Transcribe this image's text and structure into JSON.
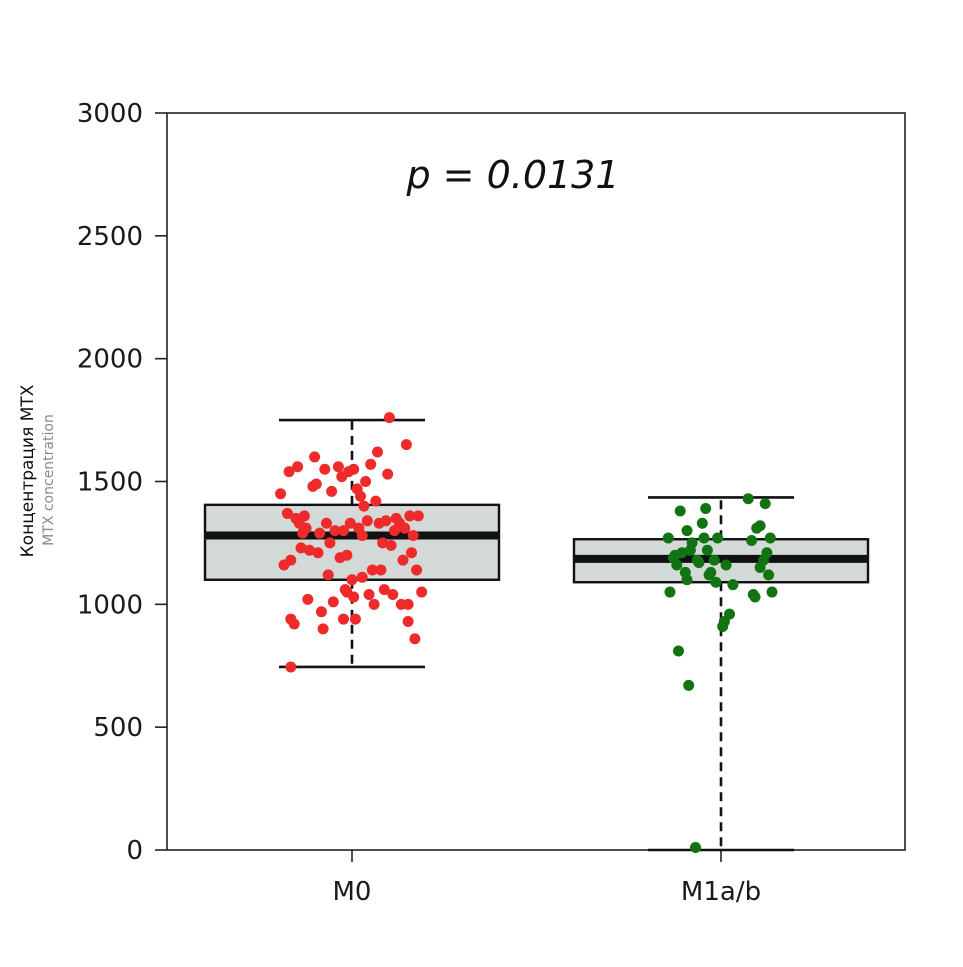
{
  "chart_data": {
    "type": "box",
    "annotation": "p = 0.0131",
    "ylabel": "Концентрация МТХ",
    "ylabel_secondary": "MTX concentration",
    "xlabel": "",
    "ylim": [
      0,
      3000
    ],
    "yticks": [
      0,
      500,
      1000,
      1500,
      2000,
      2500,
      3000
    ],
    "grid": false,
    "colors": {
      "box_fill": "#d3d9d7",
      "box_stroke": "#111111",
      "M0": "#ee2a2a",
      "M1a/b": "#127312"
    },
    "categories": [
      "M0",
      "M1a/b"
    ],
    "boxes": [
      {
        "category": "M0",
        "whisker_low": 745,
        "q1": 1100,
        "median": 1280,
        "q3": 1405,
        "whisker_high": 1750
      },
      {
        "category": "M1a/b",
        "whisker_low": 0,
        "q1": 1090,
        "median": 1185,
        "q3": 1265,
        "whisker_high": 1435
      }
    ],
    "points": {
      "M0": [
        {
          "x": -0.42,
          "y": 1450
        },
        {
          "x": -0.4,
          "y": 1160
        },
        {
          "x": -0.38,
          "y": 1370
        },
        {
          "x": -0.37,
          "y": 1540
        },
        {
          "x": -0.36,
          "y": 1180
        },
        {
          "x": -0.36,
          "y": 940
        },
        {
          "x": -0.34,
          "y": 920
        },
        {
          "x": -0.33,
          "y": 1350
        },
        {
          "x": -0.32,
          "y": 1560
        },
        {
          "x": -0.31,
          "y": 1330
        },
        {
          "x": -0.3,
          "y": 1230
        },
        {
          "x": -0.29,
          "y": 1290
        },
        {
          "x": -0.28,
          "y": 1360
        },
        {
          "x": -0.27,
          "y": 1310
        },
        {
          "x": -0.26,
          "y": 1020
        },
        {
          "x": -0.25,
          "y": 1220
        },
        {
          "x": -0.23,
          "y": 1480
        },
        {
          "x": -0.22,
          "y": 1600
        },
        {
          "x": -0.21,
          "y": 1490
        },
        {
          "x": -0.2,
          "y": 1210
        },
        {
          "x": -0.19,
          "y": 1290
        },
        {
          "x": -0.18,
          "y": 970
        },
        {
          "x": -0.17,
          "y": 900
        },
        {
          "x": -0.16,
          "y": 1550
        },
        {
          "x": -0.15,
          "y": 1330
        },
        {
          "x": -0.14,
          "y": 1120
        },
        {
          "x": -0.13,
          "y": 1250
        },
        {
          "x": -0.12,
          "y": 1460
        },
        {
          "x": -0.11,
          "y": 1010
        },
        {
          "x": -0.1,
          "y": 1300
        },
        {
          "x": -0.08,
          "y": 1560
        },
        {
          "x": -0.07,
          "y": 1190
        },
        {
          "x": -0.06,
          "y": 1520
        },
        {
          "x": -0.05,
          "y": 1300
        },
        {
          "x": -0.05,
          "y": 940
        },
        {
          "x": -0.04,
          "y": 1060
        },
        {
          "x": -0.03,
          "y": 1200
        },
        {
          "x": -0.03,
          "y": 1050
        },
        {
          "x": -0.02,
          "y": 1540
        },
        {
          "x": -0.01,
          "y": 1330
        },
        {
          "x": 0.0,
          "y": 1100
        },
        {
          "x": 0.01,
          "y": 1550
        },
        {
          "x": 0.01,
          "y": 1030
        },
        {
          "x": 0.02,
          "y": 940
        },
        {
          "x": 0.03,
          "y": 1470
        },
        {
          "x": 0.04,
          "y": 1310
        },
        {
          "x": 0.05,
          "y": 1440
        },
        {
          "x": 0.06,
          "y": 1280
        },
        {
          "x": 0.06,
          "y": 1110
        },
        {
          "x": 0.07,
          "y": 1400
        },
        {
          "x": 0.08,
          "y": 1500
        },
        {
          "x": 0.09,
          "y": 1340
        },
        {
          "x": 0.1,
          "y": 1040
        },
        {
          "x": 0.11,
          "y": 1570
        },
        {
          "x": 0.12,
          "y": 1140
        },
        {
          "x": 0.13,
          "y": 1000
        },
        {
          "x": 0.14,
          "y": 1420
        },
        {
          "x": 0.15,
          "y": 1620
        },
        {
          "x": 0.16,
          "y": 1330
        },
        {
          "x": 0.17,
          "y": 1140
        },
        {
          "x": 0.18,
          "y": 1250
        },
        {
          "x": 0.19,
          "y": 1060
        },
        {
          "x": 0.2,
          "y": 1340
        },
        {
          "x": 0.21,
          "y": 1530
        },
        {
          "x": 0.22,
          "y": 1760
        },
        {
          "x": 0.23,
          "y": 1240
        },
        {
          "x": 0.24,
          "y": 1040
        },
        {
          "x": 0.25,
          "y": 1300
        },
        {
          "x": 0.26,
          "y": 1350
        },
        {
          "x": 0.28,
          "y": 1330
        },
        {
          "x": 0.29,
          "y": 1000
        },
        {
          "x": 0.3,
          "y": 1180
        },
        {
          "x": 0.31,
          "y": 1310
        },
        {
          "x": 0.32,
          "y": 1650
        },
        {
          "x": 0.33,
          "y": 1000
        },
        {
          "x": 0.33,
          "y": 930
        },
        {
          "x": 0.34,
          "y": 1360
        },
        {
          "x": 0.35,
          "y": 1210
        },
        {
          "x": 0.36,
          "y": 1280
        },
        {
          "x": 0.37,
          "y": 860
        },
        {
          "x": 0.38,
          "y": 1140
        },
        {
          "x": 0.39,
          "y": 1360
        },
        {
          "x": 0.41,
          "y": 1050
        },
        {
          "x": -0.36,
          "y": 745
        }
      ],
      "M1a/b": [
        {
          "x": -0.31,
          "y": 1270
        },
        {
          "x": -0.3,
          "y": 1050
        },
        {
          "x": -0.28,
          "y": 1190
        },
        {
          "x": -0.27,
          "y": 1200
        },
        {
          "x": -0.26,
          "y": 1160
        },
        {
          "x": -0.25,
          "y": 810
        },
        {
          "x": -0.24,
          "y": 1380
        },
        {
          "x": -0.23,
          "y": 1210
        },
        {
          "x": -0.21,
          "y": 1130
        },
        {
          "x": -0.2,
          "y": 1300
        },
        {
          "x": -0.2,
          "y": 1100
        },
        {
          "x": -0.19,
          "y": 670
        },
        {
          "x": -0.18,
          "y": 1220
        },
        {
          "x": -0.17,
          "y": 1250
        },
        {
          "x": -0.15,
          "y": 10
        },
        {
          "x": -0.14,
          "y": 1180
        },
        {
          "x": -0.13,
          "y": 1170
        },
        {
          "x": -0.11,
          "y": 1330
        },
        {
          "x": -0.1,
          "y": 1270
        },
        {
          "x": -0.09,
          "y": 1390
        },
        {
          "x": -0.08,
          "y": 1220
        },
        {
          "x": -0.07,
          "y": 1120
        },
        {
          "x": -0.06,
          "y": 1130
        },
        {
          "x": -0.04,
          "y": 1180
        },
        {
          "x": -0.03,
          "y": 1090
        },
        {
          "x": -0.02,
          "y": 1270
        },
        {
          "x": 0.01,
          "y": 910
        },
        {
          "x": 0.02,
          "y": 930
        },
        {
          "x": 0.03,
          "y": 1160
        },
        {
          "x": 0.05,
          "y": 960
        },
        {
          "x": 0.07,
          "y": 1080
        },
        {
          "x": 0.16,
          "y": 1430
        },
        {
          "x": 0.18,
          "y": 1260
        },
        {
          "x": 0.19,
          "y": 1040
        },
        {
          "x": 0.2,
          "y": 1030
        },
        {
          "x": 0.21,
          "y": 1310
        },
        {
          "x": 0.23,
          "y": 1320
        },
        {
          "x": 0.23,
          "y": 1150
        },
        {
          "x": 0.25,
          "y": 1180
        },
        {
          "x": 0.26,
          "y": 1410
        },
        {
          "x": 0.27,
          "y": 1210
        },
        {
          "x": 0.28,
          "y": 1120
        },
        {
          "x": 0.29,
          "y": 1270
        },
        {
          "x": 0.3,
          "y": 1050
        }
      ]
    }
  }
}
